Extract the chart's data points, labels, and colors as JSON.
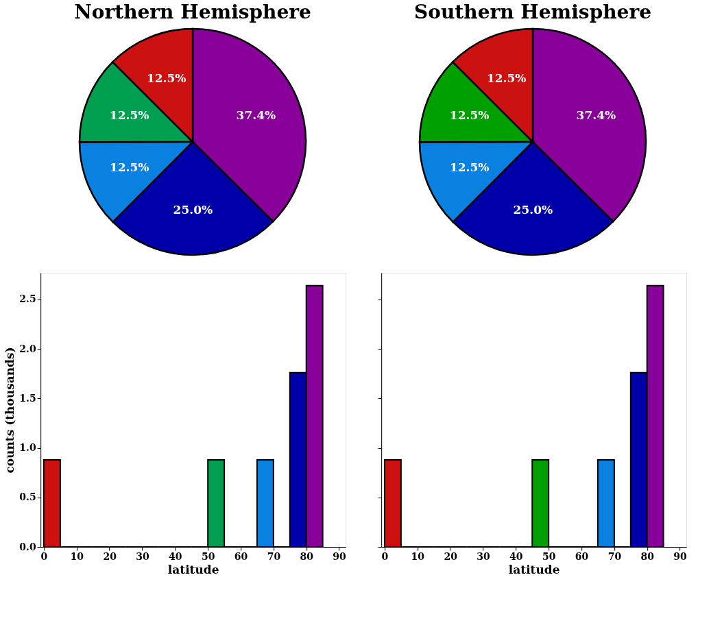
{
  "chart_data": [
    {
      "type": "pie",
      "title": "Northern Hemisphere",
      "categories": [
        null,
        null,
        null,
        null,
        null
      ],
      "values": [
        37.4,
        25.0,
        12.5,
        12.5,
        12.5
      ],
      "colors": [
        "#880099",
        "#0000aa",
        "#0a80e0",
        "#00a050",
        "#cc1111"
      ],
      "value_labels": [
        "37.4%",
        "25.0%",
        "12.5%",
        "12.5%",
        "12.5%"
      ]
    },
    {
      "type": "pie",
      "title": "Southern Hemisphere",
      "categories": [
        null,
        null,
        null,
        null,
        null
      ],
      "values": [
        37.4,
        25.0,
        12.5,
        12.5,
        12.5
      ],
      "colors": [
        "#880099",
        "#0000aa",
        "#0a80e0",
        "#00a000",
        "#cc1111"
      ],
      "value_labels": [
        "37.4%",
        "25.0%",
        "12.5%",
        "12.5%",
        "12.5%"
      ]
    },
    {
      "type": "histogram",
      "xlabel": "latitude",
      "ylabel": "counts (thousands)",
      "bins": [
        0,
        5,
        10,
        15,
        20,
        25,
        30,
        35,
        40,
        45,
        50,
        55,
        60,
        65,
        70,
        75,
        80,
        85
      ],
      "values": [
        0.88,
        0,
        0,
        0,
        0,
        0,
        0,
        0,
        0,
        0,
        0.88,
        0,
        0,
        0.88,
        0,
        1.76,
        2.64
      ],
      "colors": [
        "#cc1111",
        null,
        null,
        null,
        null,
        null,
        null,
        null,
        null,
        null,
        "#00a050",
        null,
        null,
        "#0a80e0",
        null,
        "#0000aa",
        "#880099"
      ],
      "xlim": [
        -1,
        92
      ],
      "ylim": [
        0,
        2.77
      ],
      "xticks": [
        0,
        10,
        20,
        30,
        40,
        50,
        60,
        70,
        80,
        90
      ],
      "yticks": [
        {
          "value": 0,
          "label": "0.0"
        },
        {
          "value": 0.5,
          "label": "0.5"
        },
        {
          "value": 1.0,
          "label": "1.0"
        },
        {
          "value": 1.5,
          "label": "1.5"
        },
        {
          "value": 2.0,
          "label": "2.0"
        },
        {
          "value": 2.5,
          "label": "2.5"
        }
      ],
      "grid": false
    },
    {
      "type": "histogram",
      "xlabel": "latitude",
      "bins": [
        0,
        5,
        10,
        15,
        20,
        25,
        30,
        35,
        40,
        45,
        50,
        55,
        60,
        65,
        70,
        75,
        80,
        85
      ],
      "values": [
        0.88,
        0,
        0,
        0,
        0,
        0,
        0,
        0,
        0,
        0.88,
        0,
        0,
        0,
        0.88,
        0,
        1.76,
        2.64
      ],
      "colors": [
        "#cc1111",
        null,
        null,
        null,
        null,
        null,
        null,
        null,
        null,
        "#00a000",
        null,
        null,
        null,
        "#0a80e0",
        null,
        "#0000aa",
        "#880099"
      ],
      "xlim": [
        -1,
        92
      ],
      "ylim": [
        0,
        2.77
      ],
      "xticks": [
        0,
        10,
        20,
        30,
        40,
        50,
        60,
        70,
        80,
        90
      ],
      "yticks": [
        {
          "value": 0,
          "label": null
        },
        {
          "value": 0.5,
          "label": null
        },
        {
          "value": 1.0,
          "label": null
        },
        {
          "value": 1.5,
          "label": null
        },
        {
          "value": 2.0,
          "label": null
        },
        {
          "value": 2.5,
          "label": null
        }
      ],
      "grid": false,
      "tick_labels": "x"
    }
  ]
}
